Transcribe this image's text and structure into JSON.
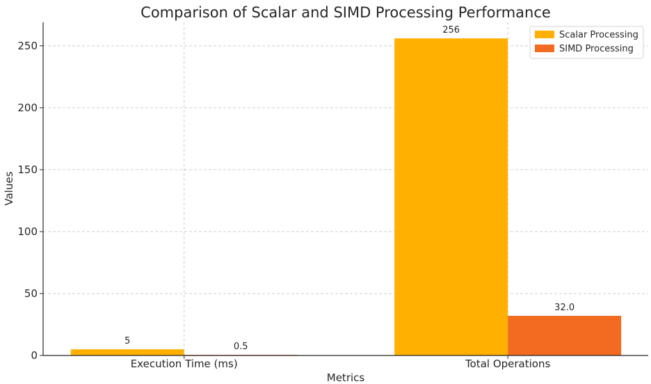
{
  "chart_data": {
    "type": "bar",
    "title": "Comparison of Scalar and SIMD Processing Performance",
    "xlabel": "Metrics",
    "ylabel": "Values",
    "categories": [
      "Execution Time (ms)",
      "Total Operations"
    ],
    "series": [
      {
        "name": "Scalar Processing",
        "values": [
          5,
          256
        ],
        "value_labels": [
          "5",
          "256"
        ],
        "color": "#FFB000"
      },
      {
        "name": "SIMD Processing",
        "values": [
          0.5,
          32.0
        ],
        "value_labels": [
          "0.5",
          "32.0"
        ],
        "color": "#F26B21"
      }
    ],
    "ylim": [
      0,
      269
    ],
    "yticks": [
      0,
      50,
      100,
      150,
      200,
      250
    ],
    "grid": true,
    "legend": "top-right"
  }
}
